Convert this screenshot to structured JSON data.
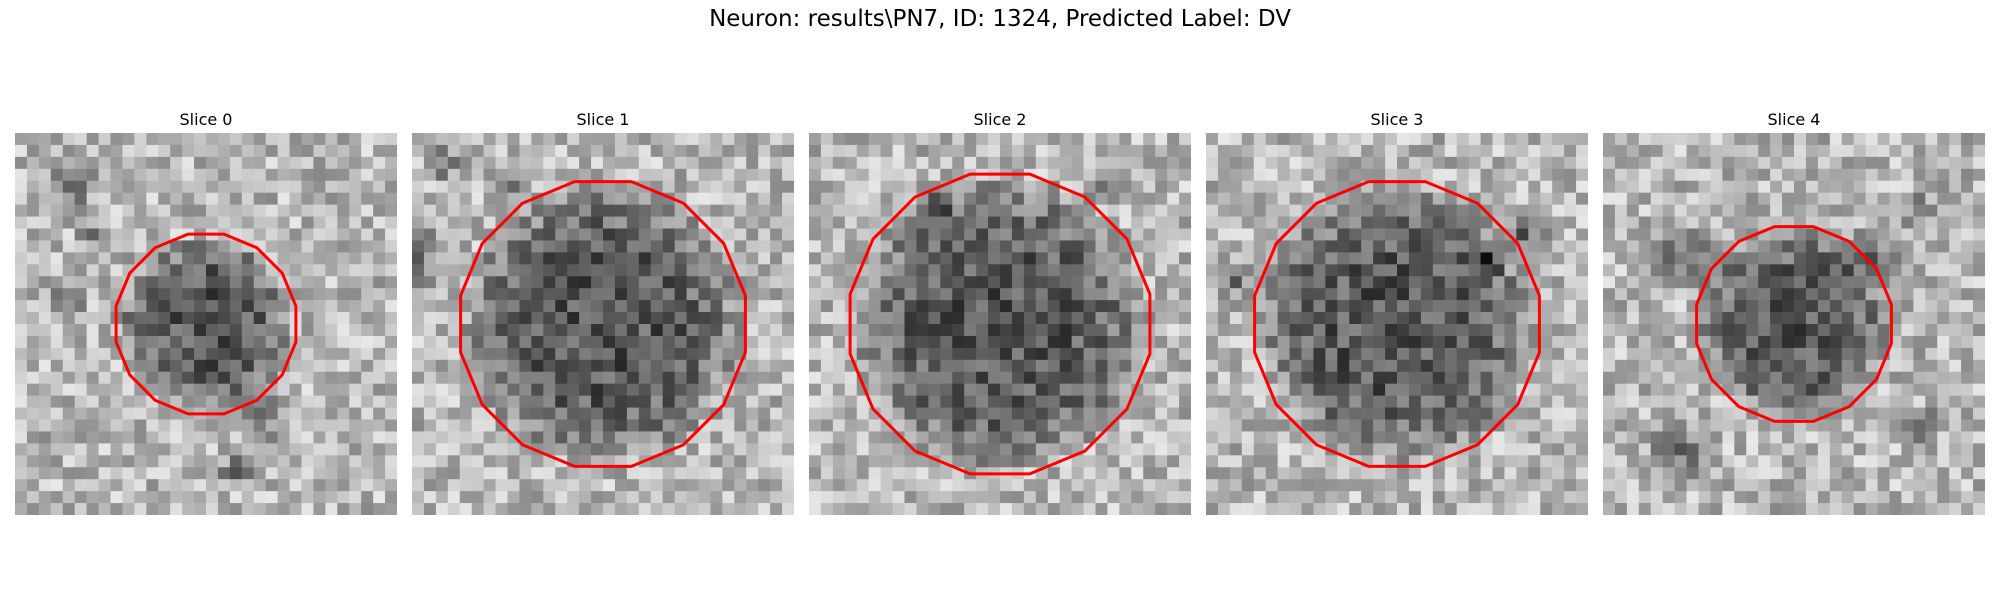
{
  "figure": {
    "title": "Neuron: results\\PN7, ID: 1324, Predicted Label: DV",
    "outline_color": "#ff0000",
    "panels": [
      {
        "title": "Slice 0",
        "seed": 11,
        "dark_blobs": [
          [
            4,
            4,
            3
          ],
          [
            6,
            8,
            2
          ],
          [
            4,
            14,
            2
          ],
          [
            18,
            28,
            2
          ],
          [
            20,
            23,
            3
          ]
        ],
        "outline_radius": 0.24
      },
      {
        "title": "Slice 1",
        "seed": 23,
        "dark_blobs": [
          [
            2,
            2,
            2
          ],
          [
            0,
            10,
            3
          ],
          [
            8,
            4,
            2
          ]
        ],
        "outline_radius": 0.38
      },
      {
        "title": "Slice 2",
        "seed": 37,
        "dark_blobs": [
          [
            10,
            6,
            2
          ],
          [
            24,
            4,
            2
          ]
        ],
        "outline_radius": 0.4
      },
      {
        "title": "Slice 3",
        "seed": 41,
        "dark_blobs": [
          [
            2,
            12,
            2
          ],
          [
            26,
            8,
            3
          ],
          [
            23,
            10,
            2
          ]
        ],
        "outline_radius": 0.38
      },
      {
        "title": "Slice 4",
        "seed": 59,
        "dark_blobs": [
          [
            4,
            10,
            3
          ],
          [
            8,
            10,
            3
          ],
          [
            22,
            10,
            3
          ],
          [
            26,
            6,
            2
          ],
          [
            6,
            26,
            3
          ],
          [
            26,
            24,
            2
          ]
        ],
        "outline_radius": 0.26
      }
    ]
  }
}
